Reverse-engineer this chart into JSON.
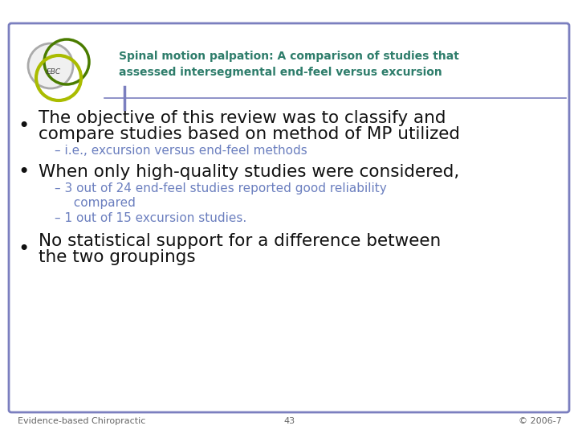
{
  "title_line1": "Spinal motion palpation: A comparison of studies that",
  "title_line2": "assessed intersegmental end-feel versus excursion",
  "title_color": "#2E7D6B",
  "background_color": "#FFFFFF",
  "border_color": "#7B7FBF",
  "bullet1_line1": "The objective of this review was to classify and",
  "bullet1_line2": "compare studies based on method of MP utilized",
  "bullet1_sub": "– i.e., excursion versus end-feel methods",
  "bullet2_main": "When only high-quality studies were considered,",
  "bullet2_sub1a": "– 3 out of 24 end-feel studies reported good reliability",
  "bullet2_sub1b": "  compared",
  "bullet2_sub2": "– 1 out of 15 excursion studies.",
  "bullet3_line1": "No statistical support for a difference between",
  "bullet3_line2": "the two groupings",
  "footer_left": "Evidence-based Chiropractic",
  "footer_center": "43",
  "footer_right": "© 2006-7",
  "bullet_color": "#111111",
  "sub_bullet_color": "#6B7FBF",
  "main_bullet_size": 15.5,
  "sub_bullet_size": 11,
  "footer_size": 8,
  "title_size": 10,
  "circle_gray": "#AAAAAA",
  "circle_green_dark": "#4A7C00",
  "circle_green_yellow": "#AABC00",
  "ebc_text_color": "#444444",
  "accent_line_color": "#7B7FBF"
}
